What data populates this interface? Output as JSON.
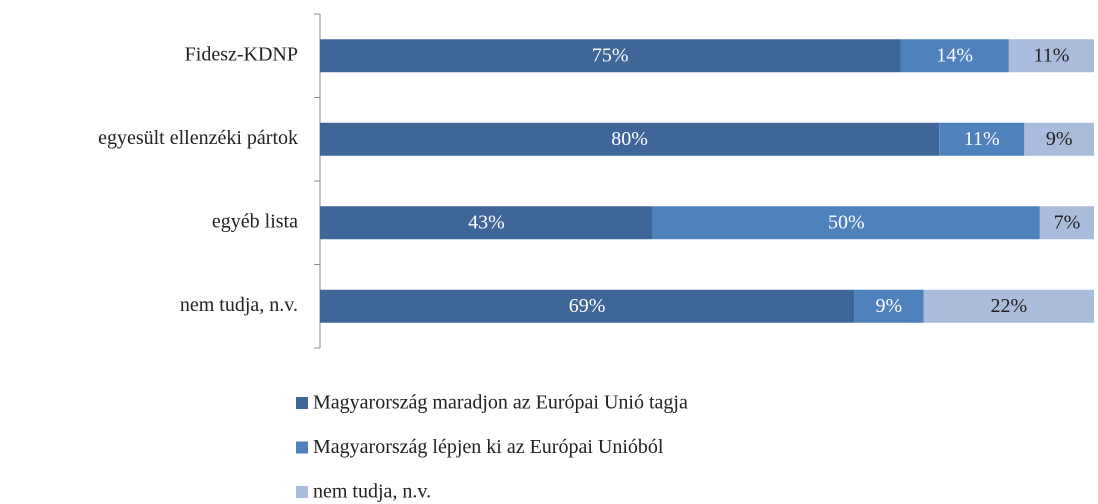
{
  "chart_data": {
    "type": "stacked_bar_horizontal",
    "categories": [
      "Fidesz-KDNP",
      "egyesült ellenzéki pártok",
      "egyéb lista",
      "nem tudja, n.v."
    ],
    "series": [
      {
        "name": "Magyarország maradjon az Európai Unió tagja",
        "color": "#3f6699",
        "values": [
          75,
          80,
          43,
          69
        ],
        "value_labels": [
          "75%",
          "80%",
          "43%",
          "69%"
        ]
      },
      {
        "name": "Magyarország lépjen ki az Európai Unióból",
        "color": "#4f81bd",
        "values": [
          14,
          11,
          50,
          9
        ],
        "value_labels": [
          "14%",
          "11%",
          "50%",
          "9%"
        ]
      },
      {
        "name": "nem tudja, n.v.",
        "color": "#a9bcdb",
        "values": [
          11,
          9,
          7,
          22
        ],
        "value_labels": [
          "11%",
          "9%",
          "7%",
          "22%"
        ]
      }
    ],
    "legend": "bottom"
  }
}
